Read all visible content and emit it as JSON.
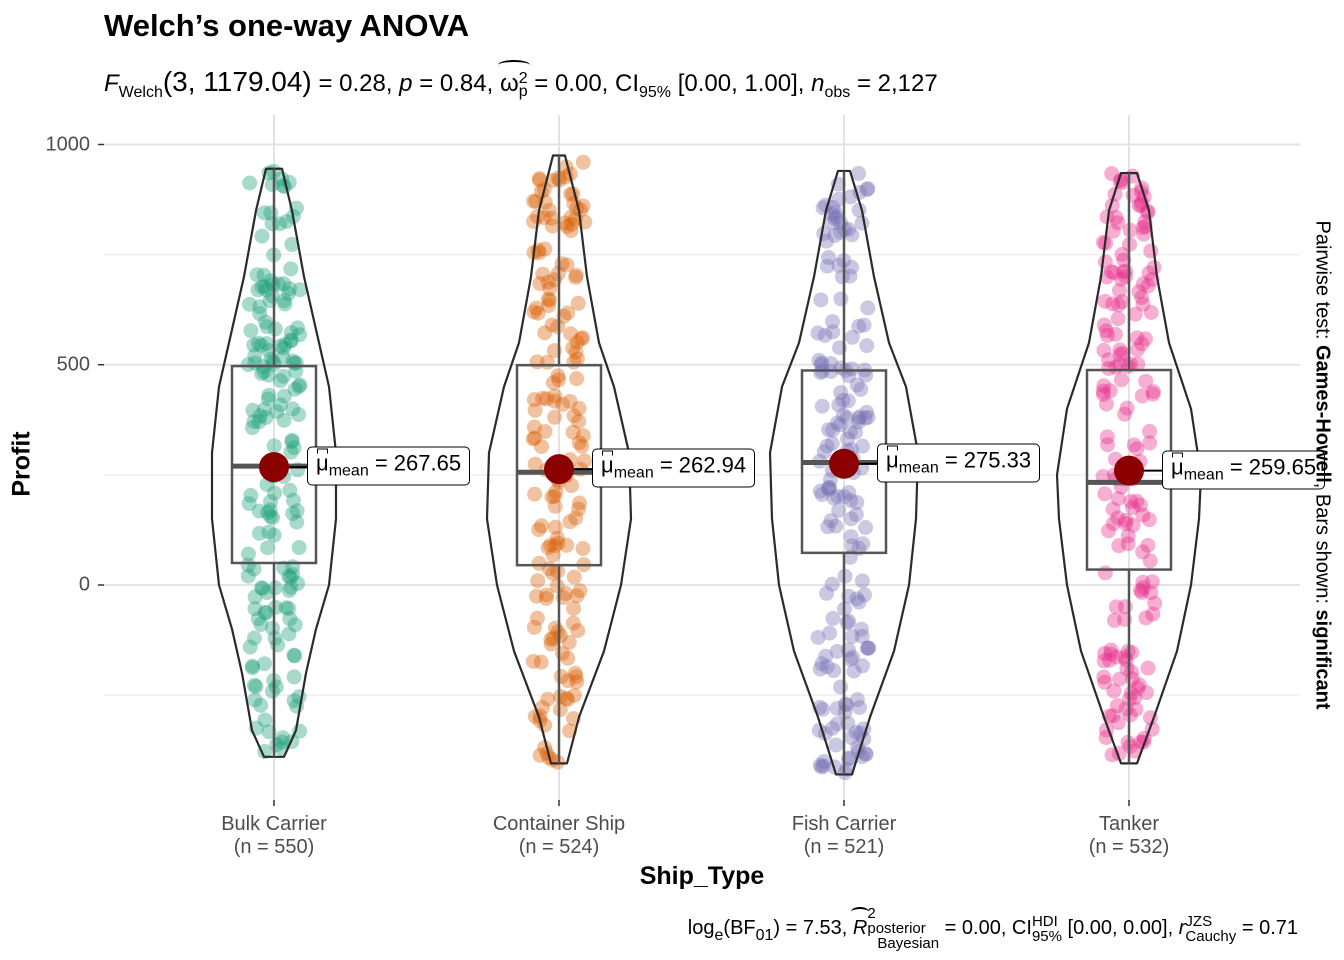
{
  "title": "Welch’s one-way ANOVA",
  "subtitle": {
    "f_symbol": "F",
    "f_sub": "Welch",
    "df": "(3, 1179.04)",
    "f_value": "= 0.28,",
    "p_symbol": "p",
    "p_value": "= 0.84,",
    "omega": "ω",
    "omega_sup": "2",
    "omega_sub": "p",
    "omega_value": "= 0.00, CI",
    "ci_sub": "95%",
    "ci_value": "[0.00, 1.00],",
    "n_symbol": "n",
    "n_sub": "obs",
    "n_value": "= 2,127"
  },
  "caption": {
    "log": "log",
    "log_sub": "e",
    "bf": "(BF",
    "bf_sub": "01",
    "bf_value": ") = 7.53,",
    "r": "R",
    "r_sup": "2",
    "r_stack_top": "posterior",
    "r_stack_bottom": "Bayesian",
    "r_value": "= 0.00, CI",
    "ci_sup": "HDI",
    "ci_sub": "95%",
    "ci_value": "[0.00, 0.00],",
    "rc": "r",
    "rc_sup": "JZS",
    "rc_sub": "Cauchy",
    "rc_value": "= 0.71"
  },
  "side_label": {
    "prefix": "Pairwise test: ",
    "test": "Games-Howell",
    "middle": ", Bars shown: ",
    "shown": "significant"
  },
  "chart_data": {
    "type": "violin-box-scatter",
    "xlabel": "Ship_Type",
    "ylabel": "Profit",
    "ylim": [
      -420,
      1000
    ],
    "yticks": [
      0,
      500,
      1000
    ],
    "grid": true,
    "categories": [
      {
        "name": "Bulk Carrier",
        "n_label": "(n = 550)",
        "n": 550,
        "mean": 267.65,
        "mean_label": "= 267.65",
        "q1": 50,
        "median": 270,
        "q3": 497,
        "min": -390,
        "max": 945,
        "color": "#1b9e77"
      },
      {
        "name": "Container Ship",
        "n_label": "(n = 524)",
        "n": 524,
        "mean": 262.94,
        "mean_label": "= 262.94",
        "q1": 45,
        "median": 256,
        "q3": 499,
        "min": -405,
        "max": 975,
        "color": "#d95f02"
      },
      {
        "name": "Fish Carrier",
        "n_label": "(n = 521)",
        "n": 521,
        "mean": 275.33,
        "mean_label": "= 275.33",
        "q1": 73,
        "median": 278,
        "q3": 487,
        "min": -430,
        "max": 940,
        "color": "#7570b3"
      },
      {
        "name": "Tanker",
        "n_label": "(n = 532)",
        "n": 532,
        "mean": 259.65,
        "mean_label": "= 259.65",
        "q1": 35,
        "median": 233,
        "q3": 488,
        "min": -405,
        "max": 935,
        "color": "#e7298a"
      }
    ],
    "mean_symbol": "μ",
    "mean_sub": "mean",
    "mean_point_color": "#8b0000"
  }
}
